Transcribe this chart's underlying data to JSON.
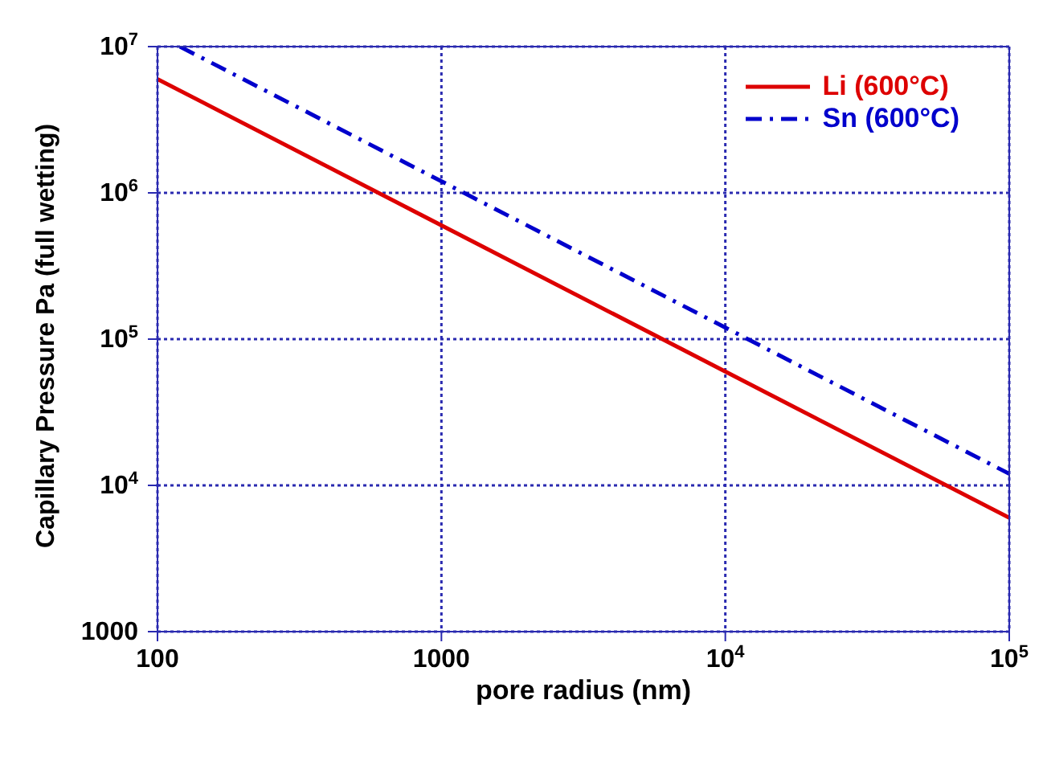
{
  "chart_data": {
    "type": "line",
    "xlabel": "pore radius (nm)",
    "ylabel": "Capillary Pressure Pa (full wetting)",
    "log": "xy",
    "grid": true,
    "legend": "top right",
    "xlim": [
      100,
      100000
    ],
    "ylim": [
      1000,
      10000000
    ],
    "xticks": [
      100,
      1000,
      {
        "value": 10000,
        "label": "10$^{4}$"
      },
      {
        "value": 100000,
        "label": "10$^{5}$"
      }
    ],
    "yticks": [
      1000,
      {
        "value": 10000,
        "label": "10$^{4}$"
      },
      {
        "value": 100000,
        "label": "10$^{5}$"
      },
      {
        "value": 1000000,
        "label": "10$^{6}$"
      },
      {
        "value": 10000000,
        "label": "10$^{7}$"
      }
    ],
    "series": [
      {
        "name": "Li (600°C)",
        "color": "#dd0000",
        "line_style": "solid",
        "x": [
          100,
          100000
        ],
        "values": [
          6000000,
          6000
        ]
      },
      {
        "name": "Sn (600°C)",
        "color": "#0000cc",
        "line_style": "dashed",
        "x": [
          120,
          100000
        ],
        "values": [
          10000000,
          12000
        ]
      }
    ]
  }
}
